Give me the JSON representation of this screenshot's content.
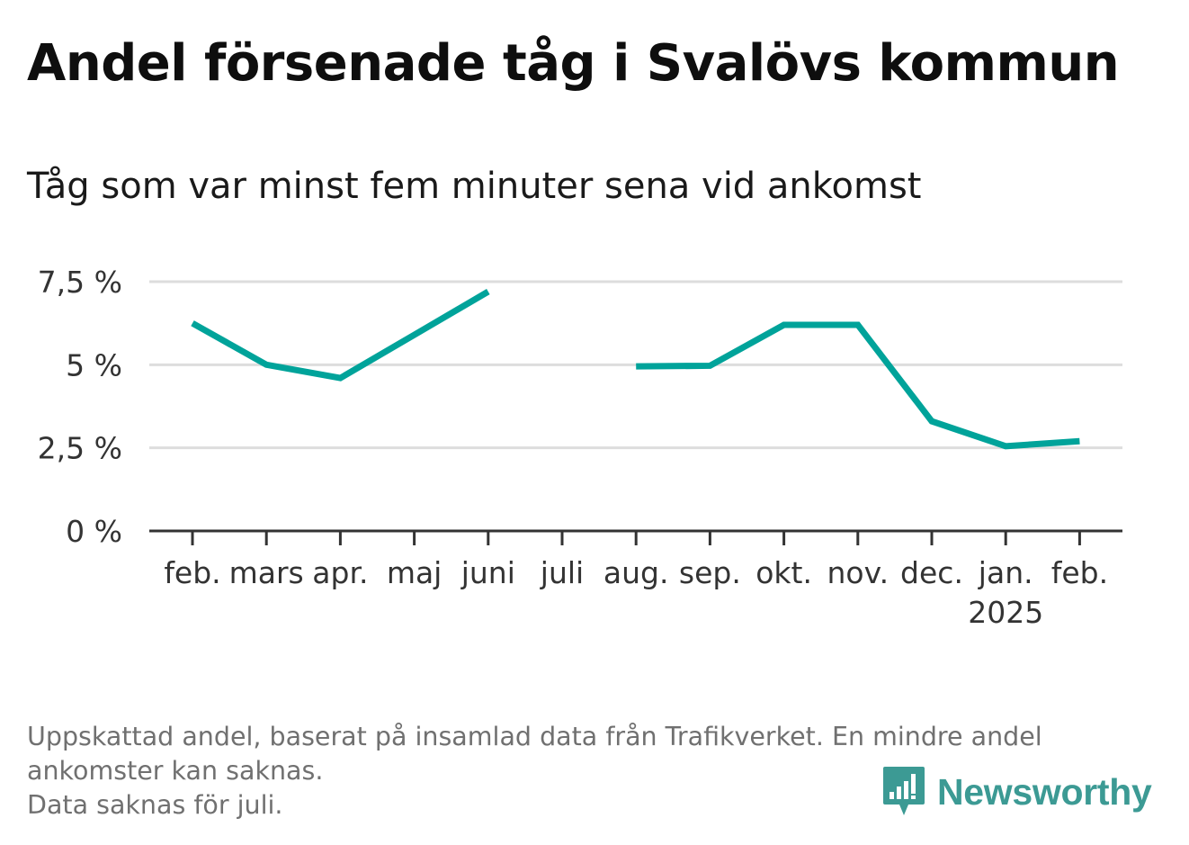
{
  "title": "Andel försenade tåg i Svalövs kommun",
  "subtitle": "Tåg som var minst fem minuter sena vid ankomst",
  "footnote": {
    "line1": "Uppskattad andel, baserat på insamlad data från Trafikverket. En mindre andel",
    "line2": "ankomster kan saknas.",
    "line3": "Data saknas för juli."
  },
  "brand": {
    "name": "Newsworthy",
    "logo_icon": "newsworthy-bar-chart-speech-bubble-icon",
    "color": "#3c9a94"
  },
  "chart_data": {
    "type": "line",
    "categories": [
      "feb.",
      "mars",
      "apr.",
      "maj",
      "juni",
      "juli",
      "aug.",
      "sep.",
      "okt.",
      "nov.",
      "dec.",
      "jan.",
      "feb."
    ],
    "year_labels": [
      "",
      "",
      "",
      "",
      "",
      "",
      "",
      "",
      "",
      "",
      "",
      "2025",
      ""
    ],
    "series": [
      {
        "color": "#00a39a",
        "values": [
          6.25,
          5.0,
          4.6,
          5.9,
          7.2,
          null,
          4.95,
          4.97,
          6.2,
          6.2,
          3.3,
          2.55,
          2.7
        ]
      }
    ],
    "y_ticks": [
      0,
      2.5,
      5,
      7.5
    ],
    "y_tick_labels": [
      "0 %",
      "2,5 %",
      "5 %",
      "7,5 %"
    ],
    "ylim": [
      0,
      7.5
    ],
    "grid": true,
    "gridline_color": "#dddddd",
    "axis_color": "#333333",
    "xlabel": "",
    "ylabel": ""
  }
}
